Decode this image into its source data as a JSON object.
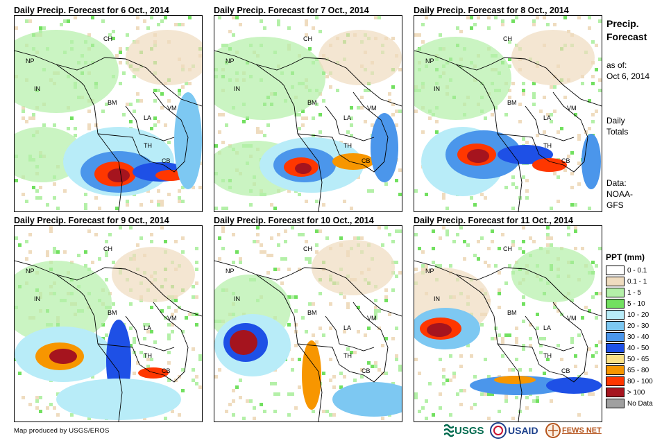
{
  "panels": [
    {
      "title": "Daily Precip. Forecast for 6 Oct., 2014"
    },
    {
      "title": "Daily Precip. Forecast for 7 Oct., 2014"
    },
    {
      "title": "Daily Precip. Forecast for 8 Oct., 2014"
    },
    {
      "title": "Daily Precip. Forecast for 9 Oct., 2014"
    },
    {
      "title": "Daily Precip. Forecast for 10 Oct., 2014"
    },
    {
      "title": "Daily Precip. Forecast for 11 Oct., 2014"
    }
  ],
  "country_labels": {
    "CH": "CH",
    "NP": "NP",
    "IN": "IN",
    "BM": "BM",
    "LA": "LA",
    "VM": "VM",
    "TH": "TH",
    "CB": "CB"
  },
  "sidebar": {
    "title_line1": "Precip.",
    "title_line2": "Forecast",
    "asof_line1": "as of:",
    "asof_line2": "Oct 6, 2014",
    "daily_line1": "Daily",
    "daily_line2": "Totals",
    "data_line1": "Data:",
    "data_line2": "NOAA-",
    "data_line3": "GFS"
  },
  "legend": {
    "title": "PPT (mm)",
    "items": [
      {
        "label": "0 - 0.1",
        "color": "#ffffff"
      },
      {
        "label": "0.1 - 1",
        "color": "#efdcbf"
      },
      {
        "label": "1 - 5",
        "color": "#b4f0a8"
      },
      {
        "label": "5 - 10",
        "color": "#72e060"
      },
      {
        "label": "10 - 20",
        "color": "#b8ecf8"
      },
      {
        "label": "20 - 30",
        "color": "#7dc8f2"
      },
      {
        "label": "30 - 40",
        "color": "#4b96eb"
      },
      {
        "label": "40 - 50",
        "color": "#1e50e6"
      },
      {
        "label": "50 - 65",
        "color": "#fae187"
      },
      {
        "label": "65 - 80",
        "color": "#f79600"
      },
      {
        "label": "80 - 100",
        "color": "#ff3700"
      },
      {
        "label": "> 100",
        "color": "#a5141e"
      },
      {
        "label": "No Data",
        "color": "#a0a0a0"
      }
    ]
  },
  "footer": {
    "credit": "Map produced by USGS/EROS",
    "logo_usgs": "USGS",
    "logo_usaid": "USAID",
    "logo_fews": "FEWS NET"
  }
}
